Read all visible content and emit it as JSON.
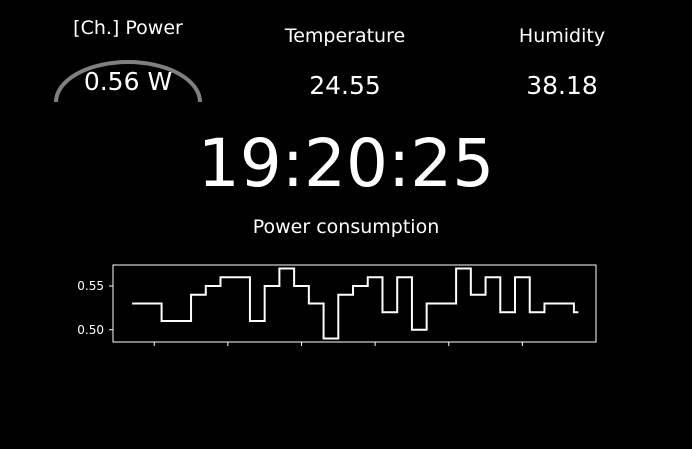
{
  "power": {
    "label": "[Ch.] Power",
    "value": "0.56 W",
    "gauge_fraction": 0.5
  },
  "temperature": {
    "label": "Temperature",
    "value": "24.55"
  },
  "humidity": {
    "label": "Humidity",
    "value": "38.18"
  },
  "clock": {
    "time": "19:20:25"
  },
  "colors": {
    "background": "#000000",
    "text": "#ffffff",
    "gauge": "#808080"
  },
  "chart_data": {
    "type": "line",
    "title": "Power consumption",
    "xlabel": "",
    "ylabel": "",
    "drawstyle": "steps-post",
    "ylim": [
      0.486,
      0.574
    ],
    "yticks": [
      0.5,
      0.55
    ],
    "ytick_labels": [
      "0.50",
      "0.55"
    ],
    "xlim": [
      -1.3,
      31.5
    ],
    "xticks": [
      1.5,
      6.5,
      11.5,
      16.5,
      21.5,
      26.5
    ],
    "series": [
      {
        "x": [
          0,
          1,
          2,
          3,
          4,
          5,
          6,
          7,
          8,
          9,
          10,
          11,
          12,
          13,
          14,
          15,
          16,
          17,
          18,
          19,
          20,
          21,
          22,
          23,
          24,
          25,
          26,
          27,
          28,
          29,
          30
        ],
        "values": [
          0.53,
          0.53,
          0.51,
          0.51,
          0.54,
          0.55,
          0.56,
          0.56,
          0.51,
          0.55,
          0.57,
          0.55,
          0.53,
          0.49,
          0.54,
          0.55,
          0.56,
          0.52,
          0.56,
          0.5,
          0.53,
          0.53,
          0.57,
          0.54,
          0.56,
          0.52,
          0.56,
          0.52,
          0.53,
          0.53,
          0.52
        ]
      }
    ]
  }
}
